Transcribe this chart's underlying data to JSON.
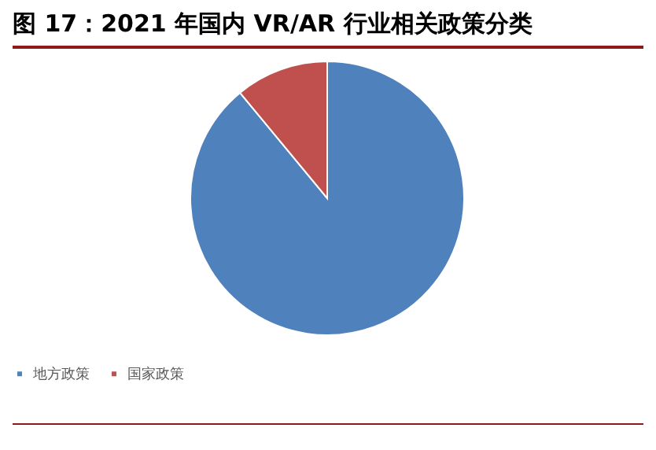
{
  "chart_data": {
    "type": "pie",
    "title": "图 17：2021 年国内 VR/AR 行业相关政策分类",
    "categories": [
      "地方政策",
      "国家政策"
    ],
    "values": [
      89,
      11
    ],
    "colors": [
      "#4f81bd",
      "#c0504d"
    ],
    "legend": "bottom"
  }
}
